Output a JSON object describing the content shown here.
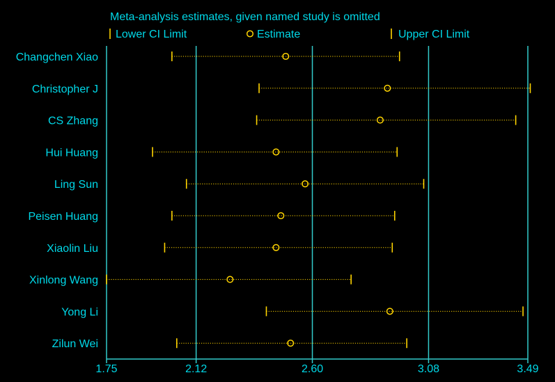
{
  "colors": {
    "background": "#000000",
    "text": "#00d8e8",
    "axis": "#33cccc",
    "marker": "#ffd400",
    "ci_line": "#ffd400"
  },
  "chart_data": {
    "type": "scatter",
    "title": "Meta-analysis estimates, given named study is omitted",
    "legend": {
      "placement": "top",
      "items": [
        {
          "label": "Lower CI Limit",
          "symbol": "tick"
        },
        {
          "label": "Estimate",
          "symbol": "circle"
        },
        {
          "label": "Upper CI Limit",
          "symbol": "tick"
        }
      ]
    },
    "x_ticks": [
      1.75,
      2.12,
      2.6,
      3.08,
      3.49
    ],
    "x_tick_labels": [
      "1.75",
      "2.12",
      "2.60",
      "3.08",
      "3.49"
    ],
    "xlim": [
      1.75,
      3.49
    ],
    "vertical_reference_lines": [
      1.75,
      2.12,
      2.6,
      3.08,
      3.49
    ],
    "studies": [
      {
        "name": "Changchen Xiao",
        "lower": 2.02,
        "estimate": 2.49,
        "upper": 2.96
      },
      {
        "name": "Christopher J",
        "lower": 2.38,
        "estimate": 2.91,
        "upper": 3.5
      },
      {
        "name": "CS Zhang",
        "lower": 2.37,
        "estimate": 2.88,
        "upper": 3.44
      },
      {
        "name": "Hui Huang",
        "lower": 1.94,
        "estimate": 2.45,
        "upper": 2.95
      },
      {
        "name": "Ling Sun",
        "lower": 2.08,
        "estimate": 2.57,
        "upper": 3.06
      },
      {
        "name": "Peisen Huang",
        "lower": 2.02,
        "estimate": 2.47,
        "upper": 2.94
      },
      {
        "name": "Xiaolin Liu",
        "lower": 1.99,
        "estimate": 2.45,
        "upper": 2.93
      },
      {
        "name": "Xinlong Wang",
        "lower": 1.75,
        "estimate": 2.26,
        "upper": 2.76
      },
      {
        "name": "Yong Li",
        "lower": 2.41,
        "estimate": 2.92,
        "upper": 3.47
      },
      {
        "name": "Zilun Wei",
        "lower": 2.04,
        "estimate": 2.51,
        "upper": 2.99
      }
    ]
  }
}
